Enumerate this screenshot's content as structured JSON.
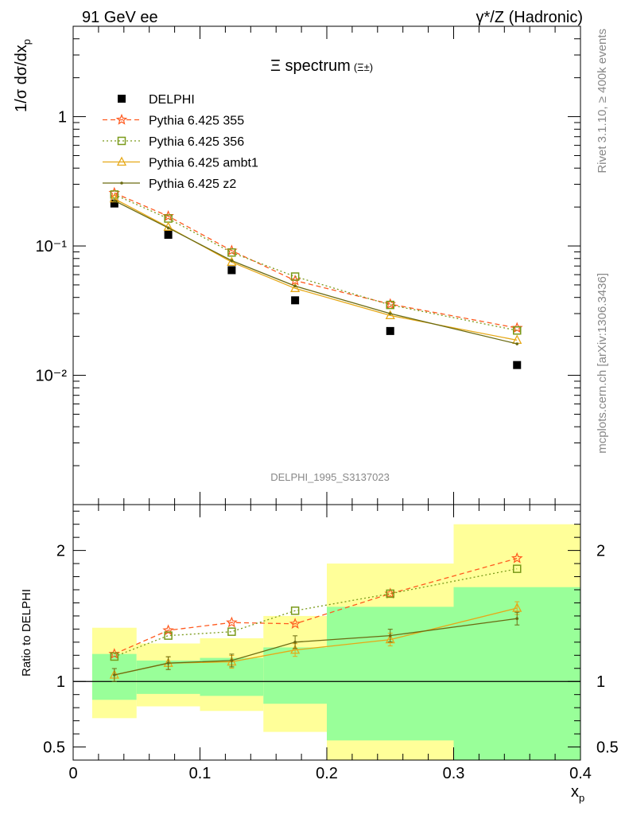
{
  "header": {
    "left": "91 GeV ee",
    "right": "γ*/Z (Hadronic)"
  },
  "side_text": {
    "rivet": "Rivet 3.1.10, ≥ 400k events",
    "mcplots": "mcplots.cern.ch [arXiv:1306.3436]"
  },
  "colors": {
    "data": "#000000",
    "p355": "#ff5a1f",
    "p356": "#7a9a1a",
    "ambt1": "#e6a817",
    "z2": "#6b6b12",
    "band_inner": "#99ff99",
    "band_outer": "#ffff99"
  },
  "chart_data": [
    {
      "type": "line",
      "title": "Ξ spectrum",
      "title_suffix": "(Ξ±)",
      "watermark": "DELPHI_1995_S3137023",
      "ylabel": "1/σ dσ/dx_p",
      "yscale": "log",
      "xlim": [
        0,
        0.4
      ],
      "ylim": [
        0.001,
        5
      ],
      "ytick_labels": [
        "10⁻²",
        "10⁻¹",
        "1"
      ],
      "legend_position": "top-left",
      "x": [
        0.0325,
        0.075,
        0.125,
        0.175,
        0.25,
        0.35
      ],
      "series": [
        {
          "name": "DELPHI",
          "marker": "square",
          "values": [
            0.213,
            0.122,
            0.065,
            0.038,
            0.022,
            0.012
          ]
        },
        {
          "name": "Pythia 6.425 355",
          "marker": "star",
          "line": "dashed",
          "values": [
            0.257,
            0.17,
            0.092,
            0.054,
            0.0355,
            0.0232
          ]
        },
        {
          "name": "Pythia 6.425 356",
          "marker": "open-square",
          "line": "dotted",
          "values": [
            0.25,
            0.163,
            0.089,
            0.058,
            0.035,
            0.0222
          ]
        },
        {
          "name": "Pythia 6.425 ambt1",
          "marker": "open-triangle",
          "line": "solid",
          "values": [
            0.232,
            0.14,
            0.075,
            0.047,
            0.029,
            0.0187
          ]
        },
        {
          "name": "Pythia 6.425 z2",
          "marker": "dot",
          "line": "solid",
          "values": [
            0.224,
            0.138,
            0.077,
            0.049,
            0.03,
            0.0175
          ]
        }
      ]
    },
    {
      "type": "line",
      "ylabel": "Ratio to DELPHI",
      "xlabel": "x_p",
      "xlim": [
        0,
        0.4
      ],
      "ylim": [
        0.4,
        2.35
      ],
      "xticks": [
        0,
        0.1,
        0.2,
        0.3,
        0.4
      ],
      "xtick_labels": [
        "0",
        "0.1",
        "0.2",
        "0.3",
        "0.4"
      ],
      "yticks": [
        0.5,
        1,
        2
      ],
      "ytick_labels": [
        "0.5",
        "1",
        "2"
      ],
      "bands": [
        {
          "x0": 0.015,
          "x1": 0.05,
          "inner": [
            0.86,
            1.21
          ],
          "outer": [
            0.72,
            1.41
          ]
        },
        {
          "x0": 0.05,
          "x1": 0.1,
          "inner": [
            0.905,
            1.16
          ],
          "outer": [
            0.81,
            1.29
          ]
        },
        {
          "x0": 0.1,
          "x1": 0.15,
          "inner": [
            0.89,
            1.18
          ],
          "outer": [
            0.775,
            1.33
          ]
        },
        {
          "x0": 0.15,
          "x1": 0.2,
          "inner": [
            0.83,
            1.26
          ],
          "outer": [
            0.615,
            1.5
          ]
        },
        {
          "x0": 0.2,
          "x1": 0.3,
          "inner": [
            0.55,
            1.57
          ],
          "outer": [
            0.4,
            1.9
          ]
        },
        {
          "x0": 0.3,
          "x1": 0.4,
          "inner": [
            0.4,
            1.72
          ],
          "outer": [
            0.4,
            2.2
          ]
        }
      ],
      "x": [
        0.0325,
        0.075,
        0.125,
        0.175,
        0.25,
        0.35
      ],
      "series": [
        {
          "name": "Pythia 6.425 355",
          "values": [
            1.21,
            1.39,
            1.45,
            1.44,
            1.67,
            1.94
          ]
        },
        {
          "name": "Pythia 6.425 356",
          "values": [
            1.19,
            1.35,
            1.38,
            1.54,
            1.67,
            1.86
          ]
        },
        {
          "name": "Pythia 6.425 ambt1",
          "values": [
            1.05,
            1.14,
            1.15,
            1.24,
            1.32,
            1.56
          ]
        },
        {
          "name": "Pythia 6.425 z2",
          "values": [
            1.05,
            1.14,
            1.16,
            1.3,
            1.35,
            1.48
          ]
        }
      ]
    }
  ]
}
